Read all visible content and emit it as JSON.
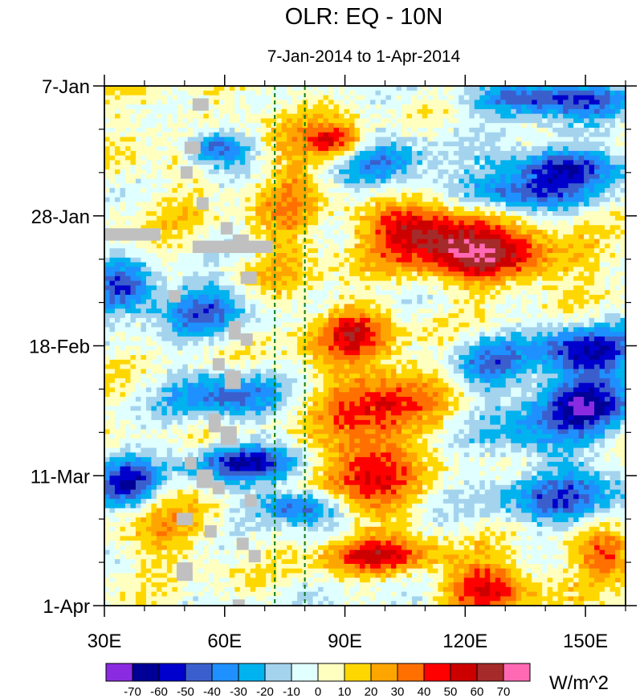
{
  "chart_data": {
    "type": "heatmap",
    "title": "OLR: EQ - 10N",
    "subtitle": "7-Jan-2014 to 1-Apr-2014",
    "x": {
      "range": [
        30,
        160
      ],
      "tick_values": [
        30,
        60,
        90,
        120,
        150
      ],
      "tick_labels": [
        "30E",
        "60E",
        "90E",
        "120E",
        "150E"
      ],
      "minor_step": 10
    },
    "y": {
      "range_days": [
        0,
        84
      ],
      "tick_days": [
        0,
        21,
        42,
        63,
        84
      ],
      "tick_labels": [
        "7-Jan",
        "28-Jan",
        "18-Feb",
        "11-Mar",
        "1-Apr"
      ],
      "minor_step_days": 7
    },
    "colorbar": {
      "unit_label": "W/m^2",
      "levels": [
        "-70",
        "-60",
        "-50",
        "-40",
        "-30",
        "-20",
        "-10",
        "0",
        "10",
        "20",
        "30",
        "40",
        "50",
        "60",
        "70"
      ],
      "colors": [
        "#8a2be2",
        "#000096",
        "#0000cd",
        "#3a5fcd",
        "#1e90ff",
        "#00b2ee",
        "#a4d3ee",
        "#e0ffff",
        "#ffffc0",
        "#ffd700",
        "#ffa500",
        "#ff7000",
        "#ff0000",
        "#cd0000",
        "#a52a2a",
        "#ff69b4"
      ]
    },
    "reference_lines_lon": [
      72.5,
      80
    ],
    "missing_color": "#c0c0c0",
    "anomaly_features": [
      {
        "lon": 110,
        "day": 23,
        "value": 58,
        "spread_lon": 12,
        "spread_day": 3
      },
      {
        "lon": 126,
        "day": 28,
        "value": 55,
        "spread_lon": 14,
        "spread_day": 3
      },
      {
        "lon": 88,
        "day": 9,
        "value": 48,
        "spread_lon": 5,
        "spread_day": 2
      },
      {
        "lon": 95,
        "day": 62,
        "value": 52,
        "spread_lon": 8,
        "spread_day": 6
      },
      {
        "lon": 100,
        "day": 50,
        "value": 40,
        "spread_lon": 10,
        "spread_day": 4
      },
      {
        "lon": 92,
        "day": 40,
        "value": 45,
        "spread_lon": 7,
        "spread_day": 3
      },
      {
        "lon": 98,
        "day": 76,
        "value": 45,
        "spread_lon": 10,
        "spread_day": 2
      },
      {
        "lon": 126,
        "day": 81,
        "value": 50,
        "spread_lon": 8,
        "spread_day": 3
      },
      {
        "lon": 155,
        "day": 76,
        "value": 40,
        "spread_lon": 6,
        "spread_day": 3
      },
      {
        "lon": 142,
        "day": 2,
        "value": -60,
        "spread_lon": 14,
        "spread_day": 2
      },
      {
        "lon": 145,
        "day": 13,
        "value": -55,
        "spread_lon": 12,
        "spread_day": 2
      },
      {
        "lon": 135,
        "day": 17,
        "value": -45,
        "spread_lon": 12,
        "spread_day": 2
      },
      {
        "lon": 58,
        "day": 10,
        "value": -55,
        "spread_lon": 6,
        "spread_day": 2
      },
      {
        "lon": 35,
        "day": 33,
        "value": -55,
        "spread_lon": 6,
        "spread_day": 3
      },
      {
        "lon": 55,
        "day": 36,
        "value": -45,
        "spread_lon": 8,
        "spread_day": 3
      },
      {
        "lon": 150,
        "day": 43,
        "value": -55,
        "spread_lon": 10,
        "spread_day": 3
      },
      {
        "lon": 150,
        "day": 51,
        "value": -55,
        "spread_lon": 8,
        "spread_day": 3
      },
      {
        "lon": 65,
        "day": 61,
        "value": -55,
        "spread_lon": 10,
        "spread_day": 2
      },
      {
        "lon": 35,
        "day": 64,
        "value": -55,
        "spread_lon": 6,
        "spread_day": 3
      },
      {
        "lon": 78,
        "day": 68,
        "value": -50,
        "spread_lon": 8,
        "spread_day": 2
      },
      {
        "lon": 145,
        "day": 67,
        "value": -40,
        "spread_lon": 12,
        "spread_day": 3
      },
      {
        "lon": 60,
        "day": 50,
        "value": -40,
        "spread_lon": 10,
        "spread_day": 3
      },
      {
        "lon": 125,
        "day": 45,
        "value": -35,
        "spread_lon": 6,
        "spread_day": 3
      },
      {
        "lon": 100,
        "day": 13,
        "value": -35,
        "spread_lon": 8,
        "spread_day": 3
      },
      {
        "lon": 140,
        "day": 56,
        "value": -30,
        "spread_lon": 10,
        "spread_day": 4
      },
      {
        "lon": 45,
        "day": 4,
        "value": 8,
        "spread_lon": 10,
        "spread_day": 25
      },
      {
        "lon": 75,
        "day": 18,
        "value": 22,
        "spread_lon": 6,
        "spread_day": 14
      },
      {
        "lon": 45,
        "day": 72,
        "value": 20,
        "spread_lon": 10,
        "spread_day": 4
      }
    ]
  }
}
